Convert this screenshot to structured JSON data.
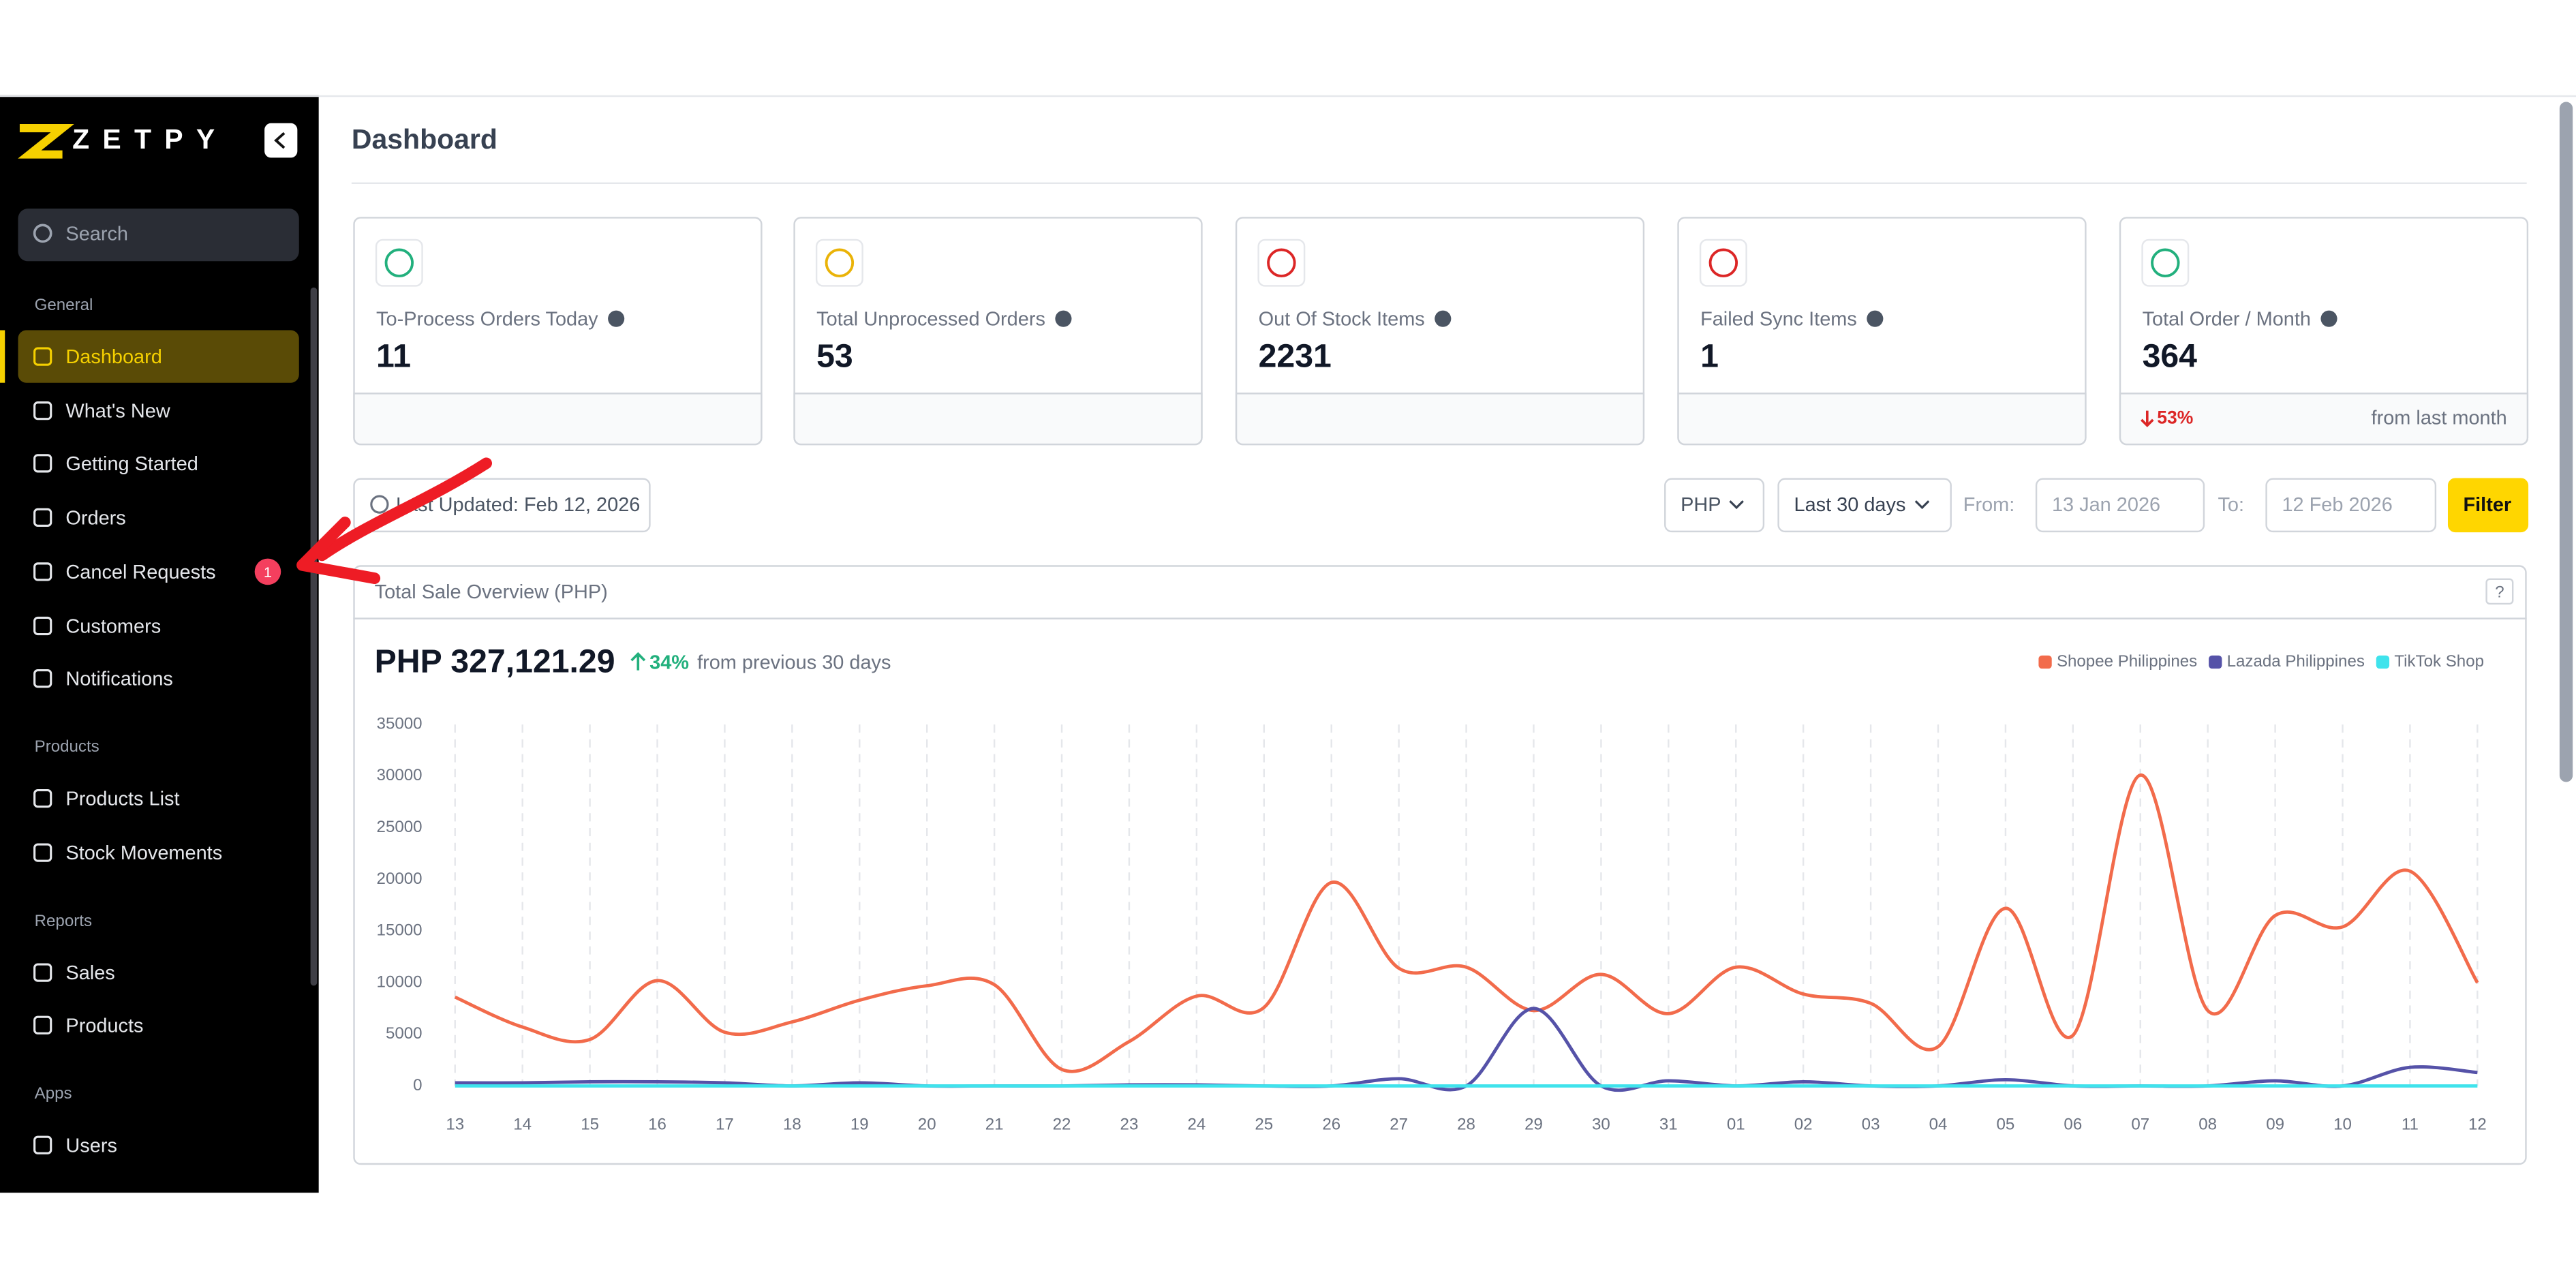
{
  "sidebar": {
    "logo": "ZETPY",
    "search": "Search",
    "sections": [
      {
        "title": "General",
        "items": [
          {
            "label": "Dashboard"
          },
          {
            "label": "What's New"
          },
          {
            "label": "Getting Started"
          },
          {
            "label": "Orders"
          },
          {
            "label": "Cancel Requests",
            "badge": "1"
          },
          {
            "label": "Customers"
          },
          {
            "label": "Notifications"
          }
        ]
      },
      {
        "title": "Products",
        "items": [
          {
            "label": "Products List"
          },
          {
            "label": "Stock Movements"
          }
        ]
      },
      {
        "title": "Reports",
        "items": [
          {
            "label": "Sales"
          },
          {
            "label": "Products"
          }
        ]
      },
      {
        "title": "Apps",
        "items": [
          {
            "label": "Users"
          }
        ]
      }
    ]
  },
  "header": {
    "title": "Dashboard"
  },
  "cards": [
    {
      "label": "To-Process Orders Today",
      "value": "11"
    },
    {
      "label": "Total Unprocessed Orders",
      "value": "53"
    },
    {
      "label": "Out Of Stock Items",
      "value": "2231"
    },
    {
      "label": "Failed Sync Items",
      "value": "1"
    },
    {
      "label": "Total Order / Month",
      "value": "364",
      "change": "53%",
      "note": "from last month"
    }
  ],
  "toolbar": {
    "updated": "Last Updated: Feb 12, 2026",
    "currency": "PHP",
    "range": "Last 30 days",
    "from_label": "From:",
    "from": "13 Jan 2026",
    "to_label": "To:",
    "to": "12 Feb 2026",
    "filter": "Filter"
  },
  "chart_data": {
    "type": "line",
    "title": "Total Sale Overview (PHP)",
    "help": "?",
    "total": "PHP 327,121.29",
    "change": "34%",
    "change_note": "from previous 30 days",
    "categories": [
      "13",
      "14",
      "15",
      "16",
      "17",
      "18",
      "19",
      "20",
      "21",
      "22",
      "23",
      "24",
      "25",
      "26",
      "27",
      "28",
      "29",
      "30",
      "31",
      "01",
      "02",
      "03",
      "04",
      "05",
      "06",
      "07",
      "08",
      "09",
      "10",
      "11",
      "12"
    ],
    "series": [
      {
        "name": "Shopee Philippines",
        "color": "#f26b4b",
        "values": [
          8600,
          5700,
          4500,
          10200,
          5200,
          6200,
          8300,
          9700,
          9800,
          1600,
          4300,
          8700,
          7600,
          19700,
          11400,
          11500,
          7300,
          10800,
          7000,
          11500,
          8900,
          8000,
          3800,
          17200,
          4900,
          30100,
          7300,
          16500,
          15400,
          20800,
          10000
        ]
      },
      {
        "name": "Lazada Philippines",
        "color": "#5552a8",
        "values": [
          300,
          300,
          400,
          400,
          300,
          0,
          300,
          0,
          0,
          0,
          100,
          100,
          0,
          0,
          700,
          0,
          7500,
          0,
          500,
          0,
          400,
          0,
          0,
          600,
          0,
          0,
          0,
          500,
          0,
          1800,
          1300
        ]
      },
      {
        "name": "TikTok Shop",
        "color": "#3fe3ec",
        "values": [
          0,
          0,
          0,
          0,
          0,
          0,
          0,
          0,
          0,
          0,
          0,
          0,
          0,
          0,
          0,
          0,
          0,
          0,
          0,
          0,
          0,
          0,
          0,
          0,
          0,
          0,
          0,
          0,
          0,
          0,
          0
        ]
      }
    ],
    "ylim": [
      0,
      35000
    ],
    "yticks": [
      0,
      5000,
      10000,
      15000,
      20000,
      25000,
      30000,
      35000
    ]
  }
}
